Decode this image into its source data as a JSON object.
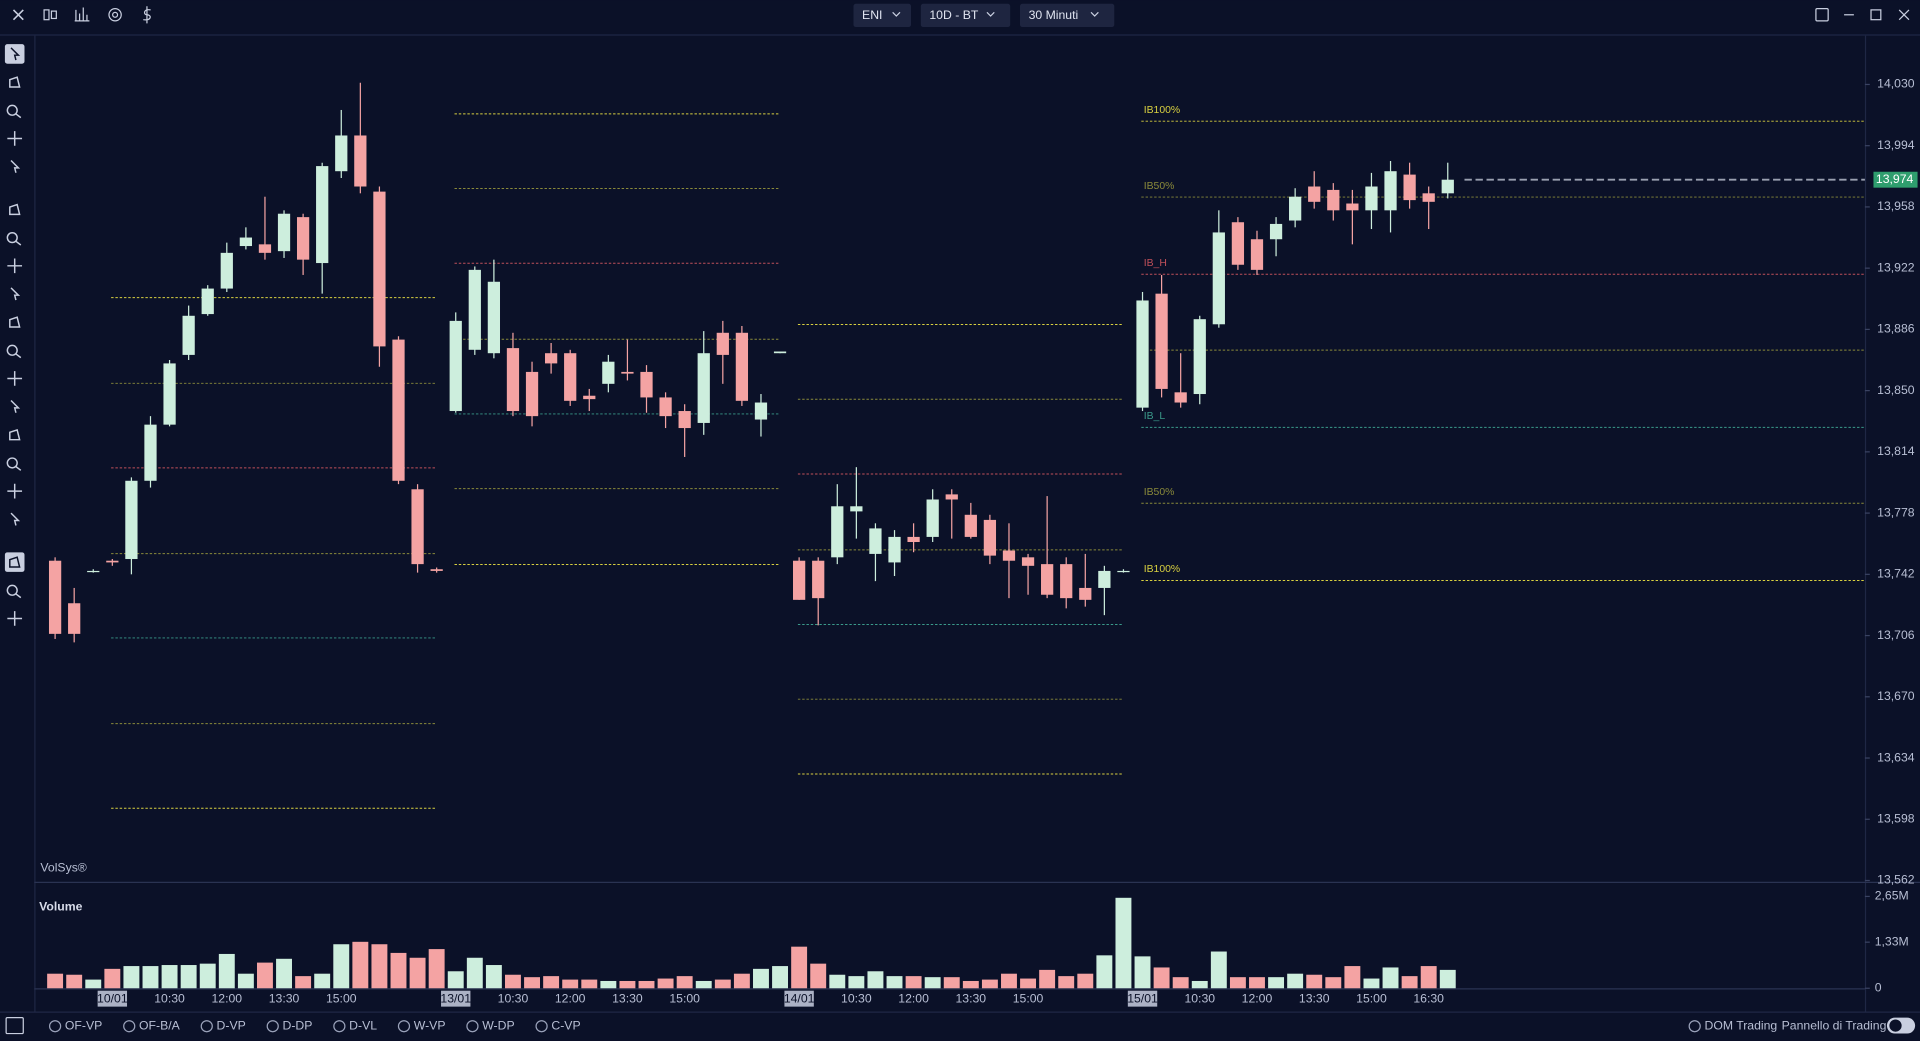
{
  "toolbar": {
    "dropdowns": [
      "ENI",
      "10D - BT",
      "30 Minuti"
    ]
  },
  "chart_data": {
    "type": "candlestick",
    "watermark": "VolSys®",
    "up_color": "#cdeedd",
    "down_color": "#f4a3a3",
    "categories": [
      null,
      null,
      null,
      "10/01",
      null,
      null,
      "10:30",
      null,
      null,
      "12:00",
      null,
      null,
      "13:30",
      null,
      null,
      "15:00",
      null,
      null,
      null,
      null,
      null,
      "13/01",
      null,
      null,
      "10:30",
      null,
      null,
      "12:00",
      null,
      null,
      "13:30",
      null,
      null,
      "15:00",
      null,
      null,
      null,
      null,
      null,
      "14/01",
      null,
      null,
      "10:30",
      null,
      null,
      "12:00",
      null,
      null,
      "13:30",
      null,
      null,
      "15:00",
      null,
      null,
      null,
      null,
      null,
      "15/01",
      null,
      null,
      "10:30",
      null,
      null,
      "12:00",
      null,
      null,
      "13:30",
      null,
      null,
      "15:00",
      null,
      null,
      "16:30",
      null
    ],
    "open": [
      13750,
      13725,
      13744,
      13750,
      13751,
      13797,
      13830,
      13871,
      13895,
      13910,
      13935,
      13936,
      13932,
      13952,
      13925,
      13979,
      14000,
      13967,
      13880,
      13792,
      13745,
      13838,
      13874,
      13872,
      13875,
      13861,
      13872,
      13872,
      13847,
      13854,
      13861,
      13861,
      13846,
      13838,
      13831,
      13884,
      13884,
      13833,
      13872,
      13750,
      13750,
      13752,
      13779,
      13754,
      13749,
      13764,
      13764,
      13789,
      13777,
      13774,
      13756,
      13752,
      13748,
      13748,
      13734,
      13734,
      13744,
      13840,
      13907,
      13849,
      13848,
      13889,
      13949,
      13939,
      13939,
      13950,
      13970,
      13968,
      13960,
      13956,
      13956,
      13977,
      13966,
      13966
    ],
    "high": [
      13752,
      13734,
      13745,
      13751,
      13799,
      13835,
      13868,
      13900,
      13912,
      13937,
      13946,
      13964,
      13956,
      13954,
      13984,
      14015,
      14031,
      13970,
      13882,
      13795,
      13746,
      13896,
      13923,
      13927,
      13884,
      13867,
      13878,
      13874,
      13851,
      13871,
      13880,
      13865,
      13849,
      13842,
      13885,
      13891,
      13888,
      13848,
      13873,
      13752,
      13752,
      13795,
      13805,
      13772,
      13768,
      13772,
      13792,
      13792,
      13784,
      13777,
      13772,
      13754,
      13788,
      13752,
      13754,
      13747,
      13745,
      13908,
      13918,
      13872,
      13894,
      13956,
      13952,
      13944,
      13952,
      13969,
      13979,
      13972,
      13968,
      13978,
      13985,
      13984,
      13970,
      13984
    ],
    "low": [
      13704,
      13702,
      13743,
      13747,
      13742,
      13793,
      13829,
      13868,
      13894,
      13908,
      13933,
      13927,
      13928,
      13918,
      13907,
      13975,
      13966,
      13864,
      13795,
      13743,
      13743,
      13837,
      13871,
      13869,
      13835,
      13829,
      13860,
      13841,
      13838,
      13849,
      13856,
      13837,
      13828,
      13811,
      13824,
      13854,
      13841,
      13823,
      13872,
      13727,
      13712,
      13748,
      13763,
      13738,
      13741,
      13755,
      13761,
      13763,
      13763,
      13748,
      13728,
      13730,
      13728,
      13722,
      13723,
      13718,
      13743,
      13838,
      13846,
      13840,
      13842,
      13887,
      13921,
      13918,
      13929,
      13946,
      13957,
      13950,
      13936,
      13945,
      13943,
      13957,
      13945,
      13963
    ],
    "close": [
      13707,
      13707,
      13744,
      13749,
      13797,
      13830,
      13866,
      13894,
      13910,
      13931,
      13940,
      13931,
      13954,
      13927,
      13982,
      14000,
      13970,
      13876,
      13797,
      13748,
      13744,
      13891,
      13921,
      13914,
      13838,
      13835,
      13866,
      13844,
      13845,
      13867,
      13860,
      13846,
      13835,
      13828,
      13872,
      13871,
      13844,
      13843,
      13873,
      13727,
      13728,
      13782,
      13782,
      13769,
      13764,
      13761,
      13786,
      13786,
      13764,
      13753,
      13750,
      13747,
      13730,
      13728,
      13727,
      13744,
      13744,
      13903,
      13851,
      13843,
      13892,
      13943,
      13924,
      13921,
      13948,
      13964,
      13961,
      13956,
      13956,
      13970,
      13979,
      13962,
      13961,
      13974
    ],
    "ylim": [
      13562,
      14058
    ],
    "yticks": [
      {
        "value": 13562,
        "label": "13,562"
      },
      {
        "value": 13598,
        "label": "13,598"
      },
      {
        "value": 13634,
        "label": "13,634"
      },
      {
        "value": 13670,
        "label": "13,670"
      },
      {
        "value": 13706,
        "label": "13,706"
      },
      {
        "value": 13742,
        "label": "13,742"
      },
      {
        "value": 13778,
        "label": "13,778"
      },
      {
        "value": 13814,
        "label": "13,814"
      },
      {
        "value": 13850,
        "label": "13,850"
      },
      {
        "value": 13886,
        "label": "13,886"
      },
      {
        "value": 13922,
        "label": "13,922"
      },
      {
        "value": 13958,
        "label": "13,958"
      },
      {
        "value": 13994,
        "label": "13,994"
      },
      {
        "value": 14030,
        "label": "14,030"
      }
    ],
    "grid": false,
    "last_price": {
      "value": 13974,
      "label": "13,974",
      "color": "#2f9e6e"
    },
    "levels": [
      [
        {
          "value": 13904.7,
          "color": "#d8d040"
        },
        {
          "value": 13854.3,
          "color": "#8a8a3a"
        },
        {
          "value": 13804.6,
          "color": "#c0505a"
        },
        {
          "value": 13754.2,
          "color": "#8a8a3a"
        },
        {
          "value": 13704.6,
          "color": "#3a9a8a"
        },
        {
          "value": 13654.2,
          "color": "#8a8a3a"
        },
        {
          "value": 13604.5,
          "color": "#d8d040"
        }
      ],
      [
        {
          "value": 14012.7,
          "color": "#d8d040"
        },
        {
          "value": 13968.8,
          "color": "#8a8a3a"
        },
        {
          "value": 13924.9,
          "color": "#c0505a"
        },
        {
          "value": 13880.2,
          "color": "#8a8a3a"
        },
        {
          "value": 13836.3,
          "color": "#3a9a8a"
        },
        {
          "value": 13792.4,
          "color": "#8a8a3a"
        },
        {
          "value": 13747.8,
          "color": "#d8d040"
        }
      ],
      [
        {
          "value": 13888.9,
          "color": "#d8d040"
        },
        {
          "value": 13844.9,
          "color": "#8a8a3a"
        },
        {
          "value": 13801.0,
          "color": "#c0505a"
        },
        {
          "value": 13756.4,
          "color": "#8a8a3a"
        },
        {
          "value": 13712.5,
          "color": "#3a9a8a"
        },
        {
          "value": 13668.6,
          "color": "#8a8a3a"
        },
        {
          "value": 13624.6,
          "color": "#d8d040"
        }
      ],
      [
        {
          "value": 14008.4,
          "color": "#d8d040",
          "label": "IB100%"
        },
        {
          "value": 13963.8,
          "color": "#8a8a3a",
          "label": "IB50%"
        },
        {
          "value": 13918.4,
          "color": "#c0505a",
          "label": "IB_H"
        },
        {
          "value": 13873.8,
          "color": "#8a8a3a"
        },
        {
          "value": 13828.4,
          "color": "#3a9a8a",
          "label": "IB_L"
        },
        {
          "value": 13783.8,
          "color": "#8a8a3a",
          "label": "IB50%"
        },
        {
          "value": 13738.4,
          "color": "#d8d040",
          "label": "IB100%"
        }
      ]
    ],
    "volume": {
      "title": "Volume",
      "values": [
        0.42,
        0.39,
        0.25,
        0.56,
        0.64,
        0.64,
        0.67,
        0.67,
        0.71,
        0.99,
        0.42,
        0.74,
        0.85,
        0.35,
        0.42,
        1.27,
        1.34,
        1.27,
        1.02,
        0.88,
        1.13,
        0.49,
        0.88,
        0.67,
        0.39,
        0.32,
        0.35,
        0.25,
        0.25,
        0.21,
        0.21,
        0.21,
        0.28,
        0.35,
        0.21,
        0.25,
        0.42,
        0.56,
        0.64,
        1.2,
        0.71,
        0.39,
        0.35,
        0.49,
        0.35,
        0.35,
        0.32,
        0.32,
        0.21,
        0.25,
        0.42,
        0.28,
        0.53,
        0.35,
        0.42,
        0.95,
        2.61,
        0.92,
        0.6,
        0.32,
        0.21,
        1.06,
        0.32,
        0.32,
        0.32,
        0.42,
        0.39,
        0.32,
        0.64,
        0.28,
        0.6,
        0.35,
        0.64,
        0.53
      ],
      "ylim": [
        0,
        2.65
      ],
      "yticks": [
        0,
        {
          "value": 1.33,
          "label": "1,33M"
        },
        {
          "value": 2.65,
          "label": "2,65M"
        }
      ]
    }
  },
  "bottom_bar": {
    "options": [
      "OF-VP",
      "OF-B/A",
      "D-VP",
      "D-DP",
      "D-VL",
      "W-VP",
      "W-DP",
      "C-VP"
    ],
    "dom": "DOM Trading",
    "panel": "Pannello di Trading"
  }
}
